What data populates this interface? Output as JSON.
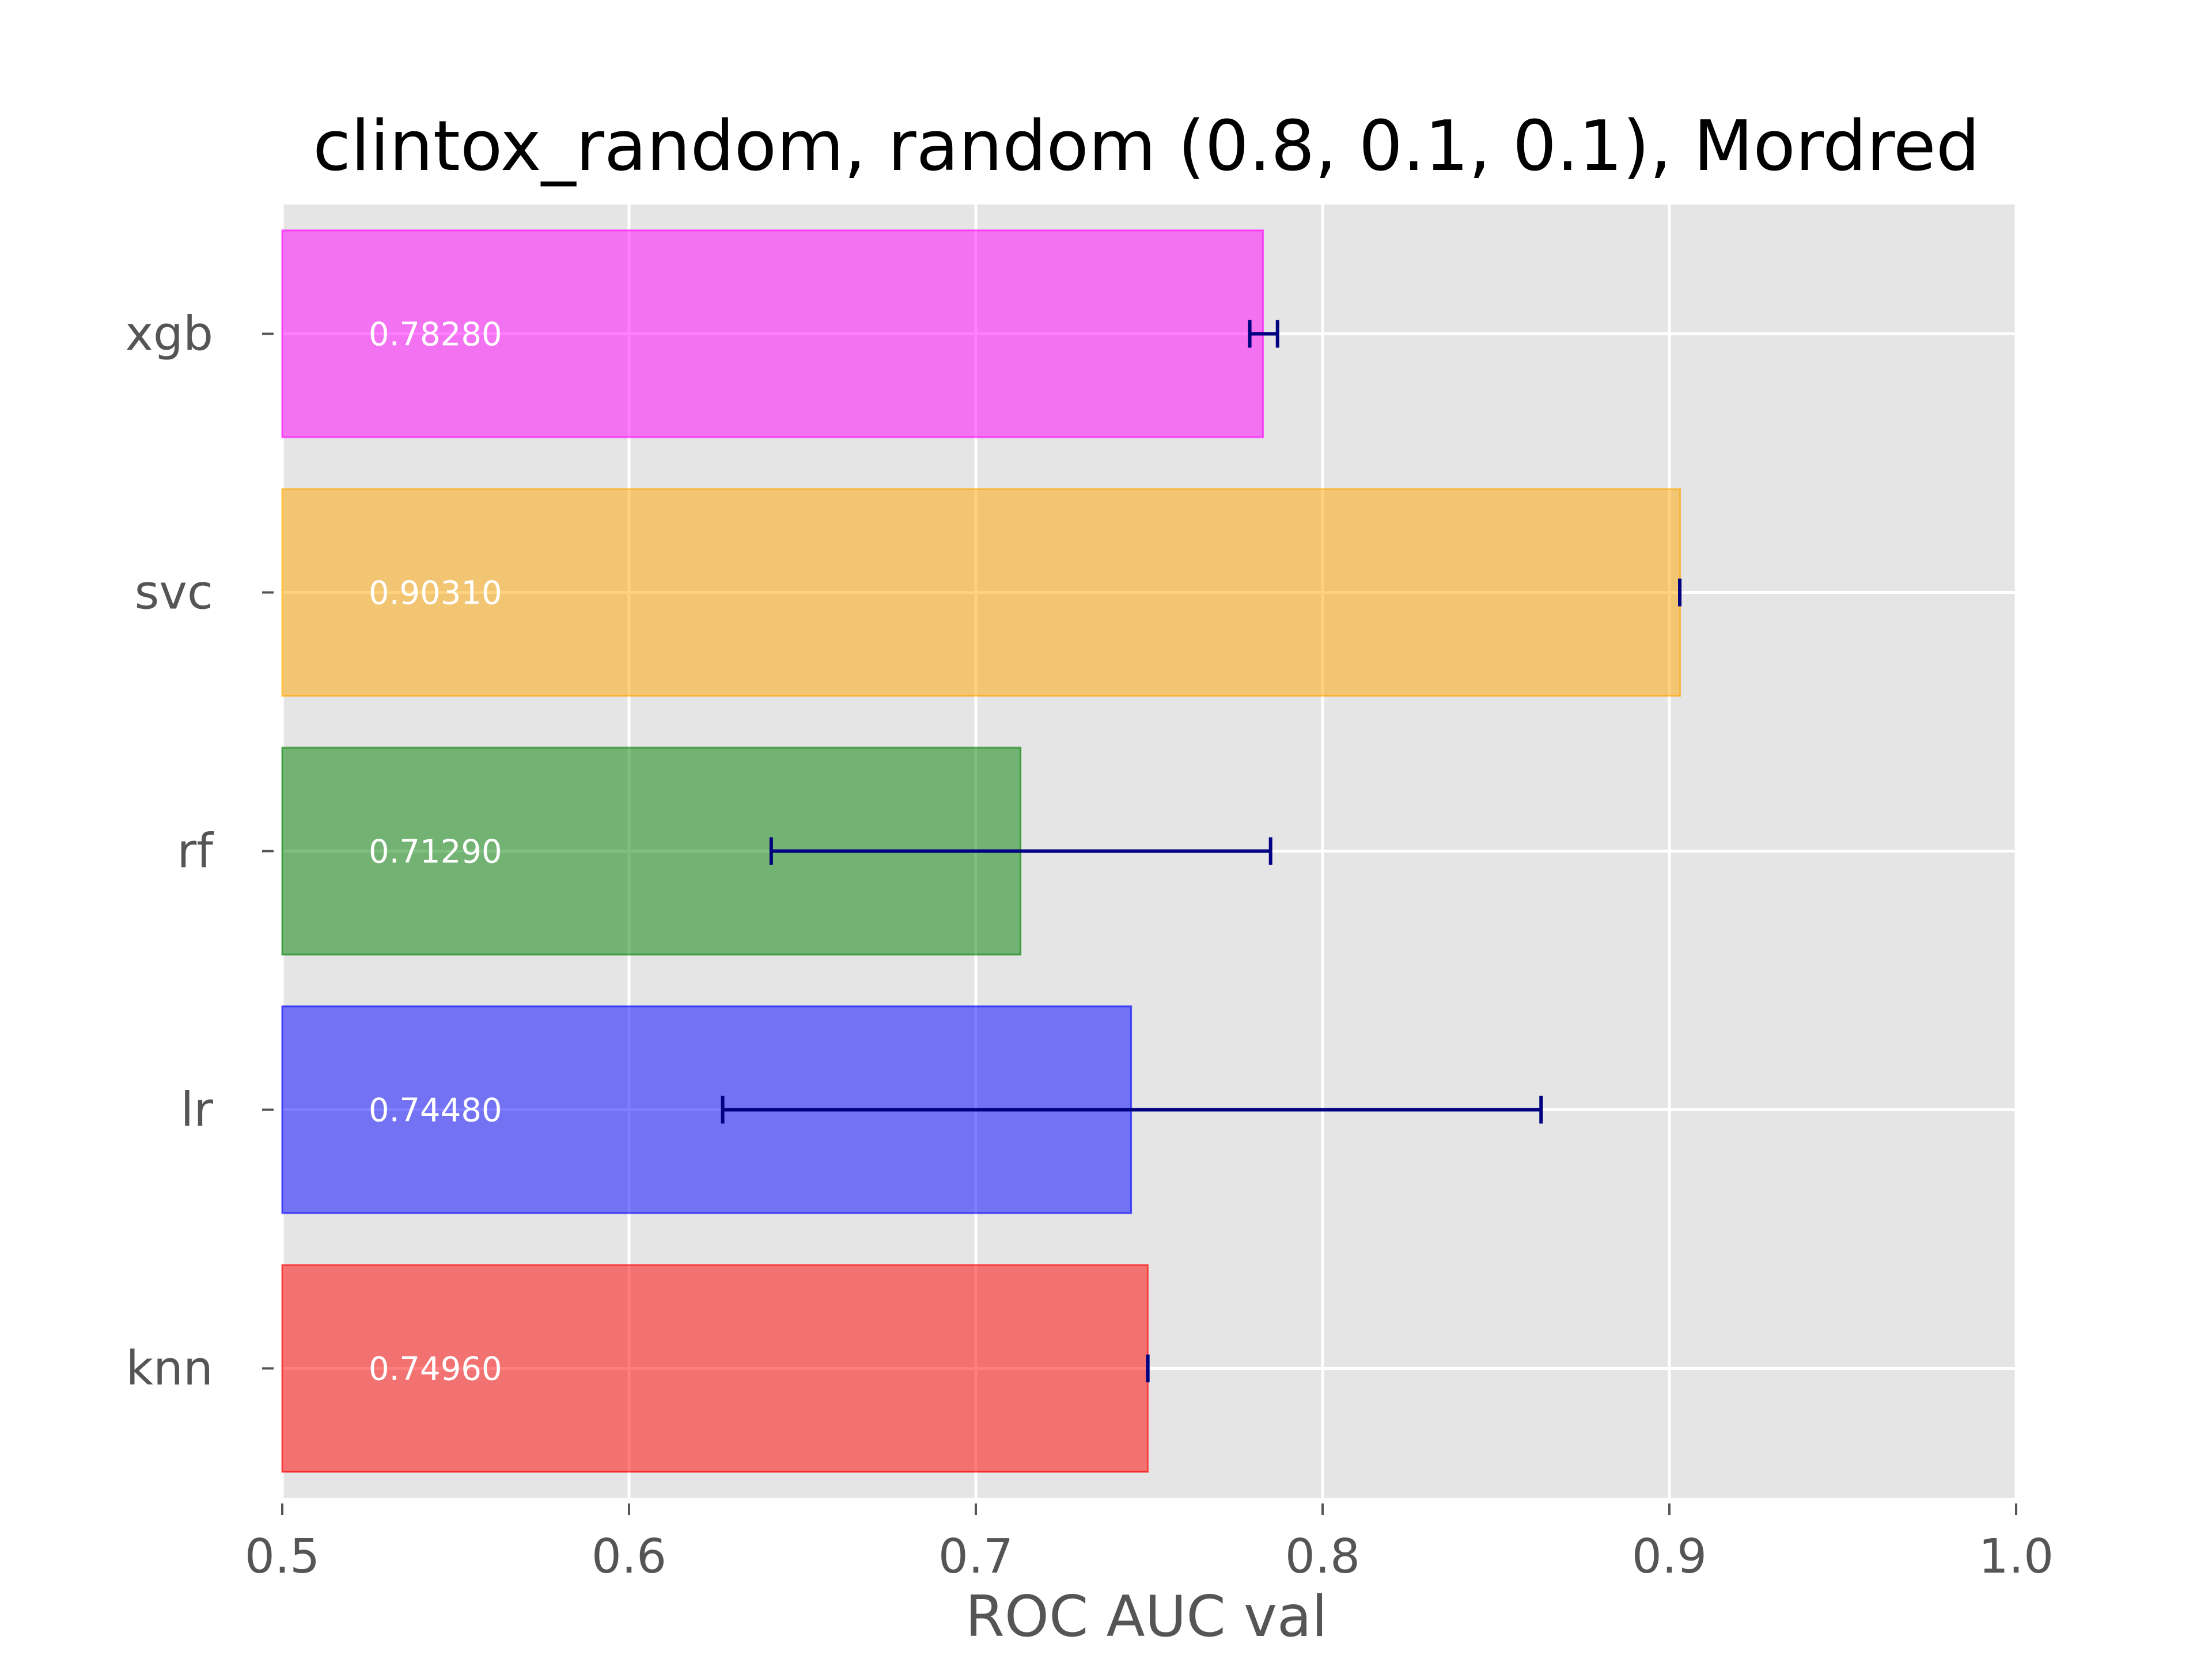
{
  "chart_data": {
    "type": "bar",
    "orientation": "horizontal",
    "title": "clintox_random, random (0.8, 0.1, 0.1), Mordred",
    "xlabel": "ROC AUC val",
    "ylabel": "",
    "xlim": [
      0.5,
      1.0
    ],
    "xticks": [
      0.5,
      0.6,
      0.7,
      0.8,
      0.9,
      1.0
    ],
    "xtick_labels": [
      "0.5",
      "0.6",
      "0.7",
      "0.8",
      "0.9",
      "1.0"
    ],
    "grid": true,
    "style": "ggplot",
    "categories": [
      "knn",
      "lr",
      "rf",
      "svc",
      "xgb"
    ],
    "values": [
      0.7496,
      0.7448,
      0.7129,
      0.9031,
      0.7828
    ],
    "value_labels": [
      "0.74960",
      "0.74480",
      "0.71290",
      "0.90310",
      "0.78280"
    ],
    "error_low": [
      0.7496,
      0.627,
      0.641,
      0.903,
      0.779
    ],
    "error_high": [
      0.7496,
      0.863,
      0.785,
      0.903,
      0.787
    ],
    "colors": [
      "#ff0000",
      "#0000ff",
      "#008000",
      "#ffa500",
      "#ff00ff"
    ],
    "error_color": "#000080",
    "background_color": "#e5e5e5",
    "grid_color": "#ffffff"
  }
}
